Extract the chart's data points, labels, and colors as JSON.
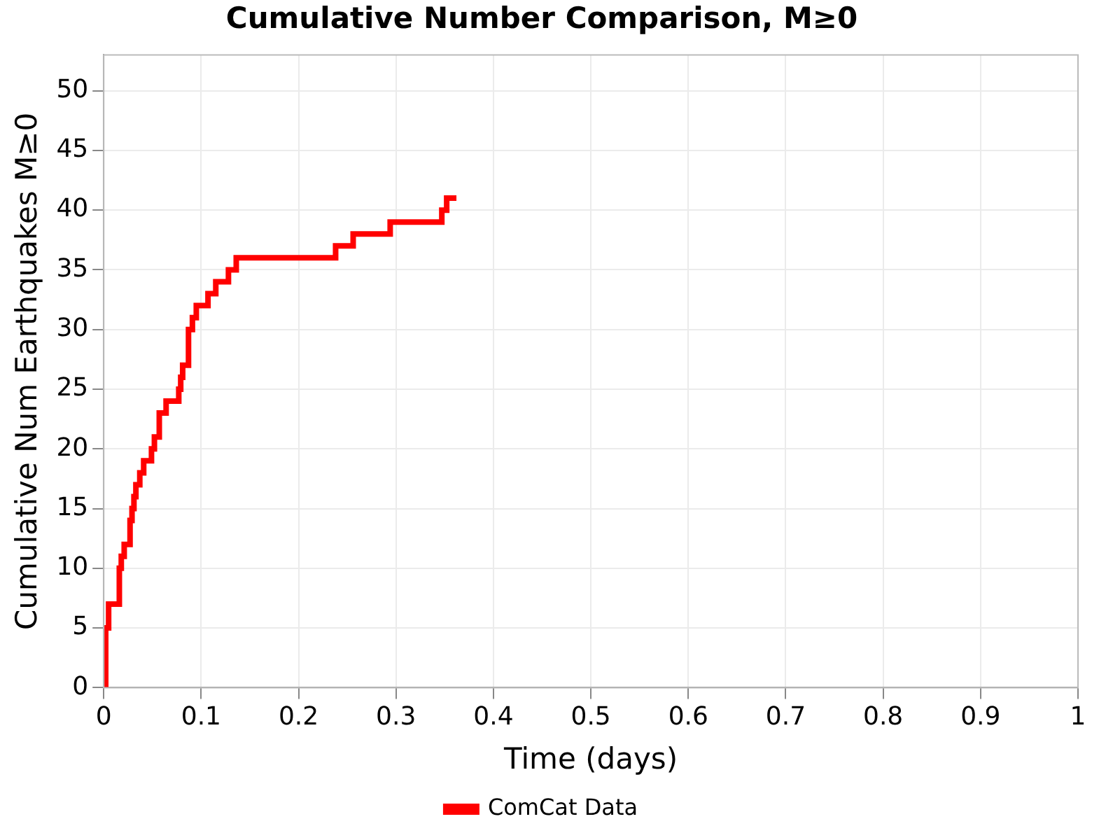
{
  "chart_data": {
    "type": "step",
    "title": "Cumulative Number Comparison, M≥0",
    "xlabel": "Time (days)",
    "ylabel": "Cumulative Num Earthquakes M≥0",
    "xlim": [
      0,
      1
    ],
    "xticks": [
      0,
      0.1,
      0.2,
      0.3,
      0.4,
      0.5,
      0.6,
      0.7,
      0.8,
      0.9,
      1
    ],
    "ylim": [
      0,
      53
    ],
    "yticks": [
      0,
      5,
      10,
      15,
      20,
      25,
      30,
      35,
      40,
      45,
      50
    ],
    "grid": true,
    "legend": "bottom",
    "series": [
      {
        "name": "ComCat Data",
        "color": "#ff0000",
        "x": [
          0,
          0.002,
          0.005,
          0.016,
          0.018,
          0.021,
          0.027,
          0.029,
          0.031,
          0.033,
          0.037,
          0.041,
          0.049,
          0.052,
          0.057,
          0.064,
          0.077,
          0.079,
          0.081,
          0.087,
          0.091,
          0.095,
          0.107,
          0.115,
          0.128,
          0.136,
          0.238,
          0.256,
          0.294,
          0.347,
          0.352,
          0.362
        ],
        "values": [
          0,
          5,
          7,
          10,
          11,
          12,
          14,
          15,
          16,
          17,
          18,
          19,
          20,
          21,
          23,
          24,
          25,
          26,
          27,
          30,
          31,
          32,
          33,
          34,
          35,
          36,
          37,
          38,
          39,
          40,
          41,
          41
        ]
      }
    ]
  }
}
